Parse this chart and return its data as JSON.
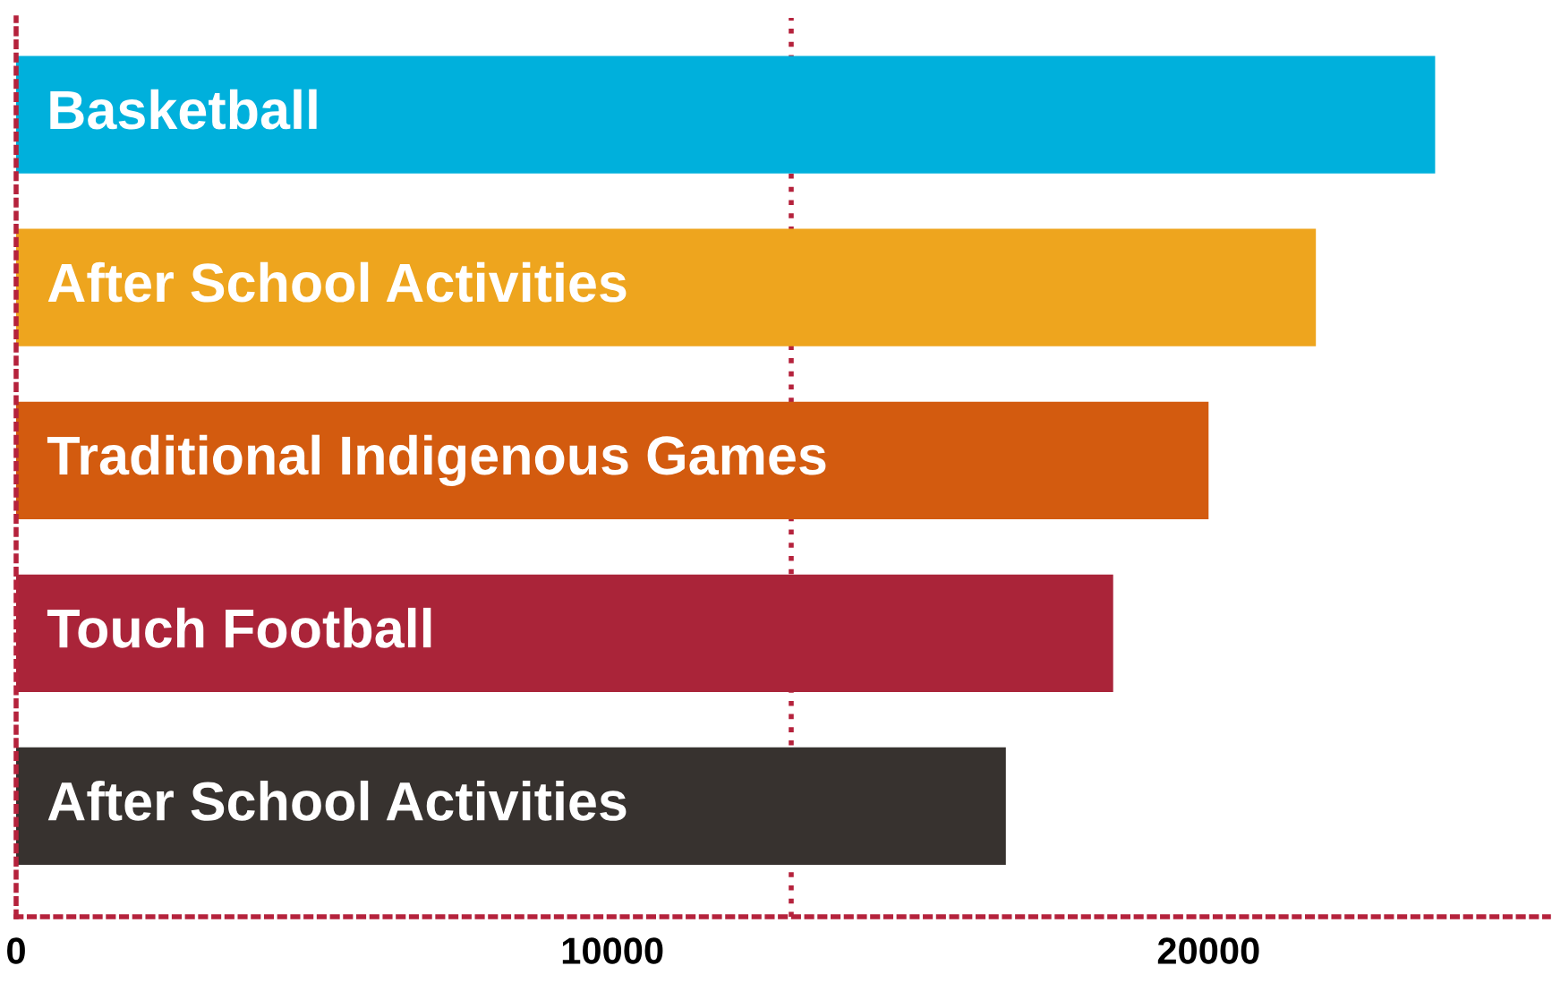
{
  "chart_data": {
    "type": "bar",
    "orientation": "horizontal",
    "categories": [
      "Basketball",
      "After School Activities",
      "Traditional Indigenous Games",
      "Touch Football",
      "After School Activities"
    ],
    "values": [
      23800,
      21800,
      20000,
      18400,
      16600
    ],
    "colors": [
      "#00b0dc",
      "#eea51e",
      "#d35b0f",
      "#aa2439",
      "#37322f"
    ],
    "xlim": [
      0,
      25700
    ],
    "xticks": [
      0,
      10000,
      20000
    ],
    "ref_lines": [
      {
        "axis": "x",
        "value": 13000,
        "label": null,
        "color": "#b5223c",
        "line_style": "dotted"
      }
    ],
    "grid": false,
    "legend": false
  }
}
